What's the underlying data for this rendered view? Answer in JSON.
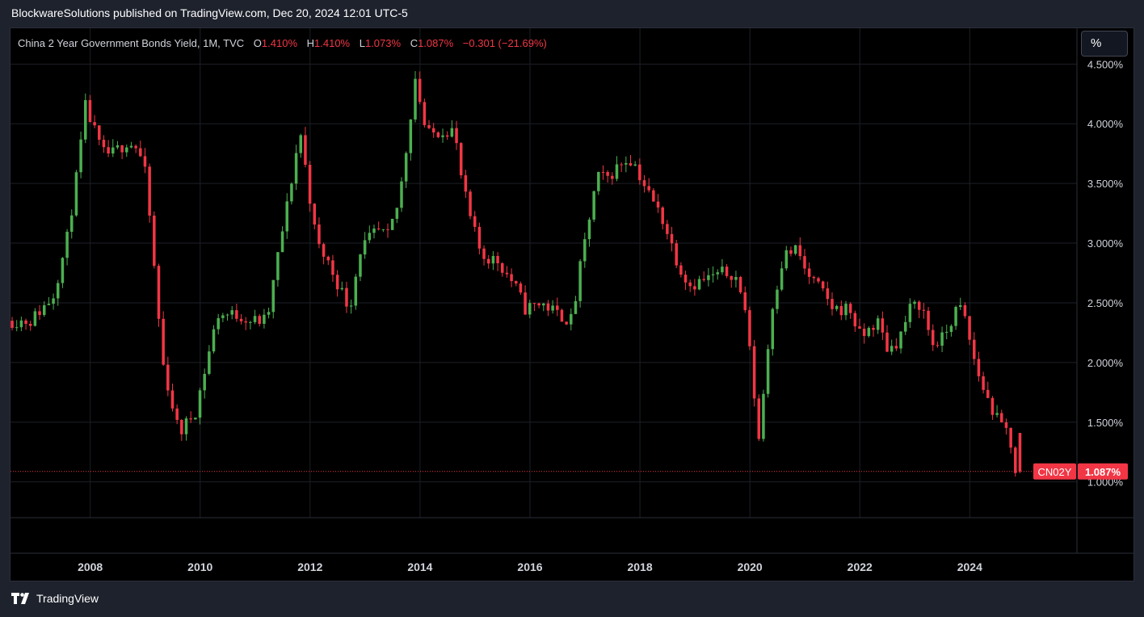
{
  "header": {
    "publisher_line": "BlockwareSolutions published on TradingView.com, Dec 20, 2024 12:01 UTC-5"
  },
  "legend": {
    "symbol": "China 2 Year Government Bonds Yield, 1M, TVC",
    "open_label": "O",
    "open": "1.410%",
    "high_label": "H",
    "high": "1.410%",
    "low_label": "L",
    "low": "1.073%",
    "close_label": "C",
    "close": "1.087%",
    "change": "−0.301 (−21.69%)"
  },
  "toolbar": {
    "unit_button": "%"
  },
  "footer": {
    "brand": "TradingView"
  },
  "colors": {
    "up": "#4caf50",
    "down": "#f23645",
    "background": "#000000",
    "grid": "#1c1f27",
    "axis_text": "#d1d4dc",
    "frame": "#1e222d"
  },
  "chart_data": {
    "type": "candlestick",
    "interval": "1M",
    "ticker": "CN02Y",
    "last_price_label": "1.087%",
    "y_scale": "linear",
    "ylim": [
      0.7,
      4.8
    ],
    "xlim": [
      2006.55,
      2025.95
    ],
    "y_ticks": [
      1.0,
      1.5,
      2.0,
      2.5,
      3.0,
      3.5,
      4.0,
      4.5
    ],
    "y_tick_labels": [
      "1.000%",
      "1.500%",
      "2.000%",
      "2.500%",
      "3.000%",
      "3.500%",
      "4.000%",
      "4.500%"
    ],
    "x_ticks": [
      2008,
      2010,
      2012,
      2014,
      2016,
      2018,
      2020,
      2022,
      2024
    ],
    "x_tick_labels": [
      "2008",
      "2010",
      "2012",
      "2014",
      "2016",
      "2018",
      "2020",
      "2022",
      "2024"
    ],
    "grid": true,
    "close_anchor_dates": [
      2006.58,
      2007.0,
      2007.4,
      2007.65,
      2007.85,
      2008.0,
      2008.3,
      2008.5,
      2008.75,
      2008.95,
      2009.1,
      2009.4,
      2009.7,
      2010.0,
      2010.4,
      2010.8,
      2011.0,
      2011.3,
      2011.5,
      2011.7,
      2011.9,
      2012.2,
      2012.4,
      2012.6,
      2012.8,
      2013.0,
      2013.3,
      2013.5,
      2013.7,
      2013.85,
      2014.0,
      2014.2,
      2014.5,
      2014.7,
      2014.85,
      2015.0,
      2015.2,
      2015.5,
      2015.8,
      2016.0,
      2016.3,
      2016.6,
      2016.85,
      2017.0,
      2017.3,
      2017.5,
      2017.8,
      2017.95,
      2018.2,
      2018.5,
      2018.8,
      2019.0,
      2019.3,
      2019.6,
      2019.8,
      2020.0,
      2020.1,
      2020.25,
      2020.35,
      2020.5,
      2020.7,
      2020.95,
      2021.1,
      2021.3,
      2021.6,
      2021.9,
      2022.1,
      2022.4,
      2022.6,
      2022.8,
      2023.0,
      2023.2,
      2023.4,
      2023.6,
      2023.85,
      2023.95,
      2024.2,
      2024.4,
      2024.6,
      2024.8,
      2024.92
    ],
    "close_anchor_values": [
      2.35,
      2.35,
      2.55,
      3.0,
      3.6,
      4.15,
      3.75,
      3.75,
      3.85,
      3.8,
      3.55,
      2.0,
      1.4,
      1.6,
      2.4,
      2.4,
      2.35,
      2.35,
      2.9,
      3.4,
      3.95,
      3.0,
      2.85,
      2.65,
      2.45,
      2.95,
      3.1,
      3.05,
      3.35,
      3.85,
      4.4,
      3.9,
      3.95,
      3.95,
      3.5,
      3.2,
      2.9,
      2.85,
      2.65,
      2.45,
      2.5,
      2.4,
      2.35,
      2.8,
      3.55,
      3.55,
      3.7,
      3.7,
      3.45,
      3.2,
      2.8,
      2.65,
      2.7,
      2.75,
      2.75,
      2.45,
      2.0,
      1.35,
      1.85,
      2.5,
      2.9,
      2.95,
      2.75,
      2.65,
      2.45,
      2.45,
      2.2,
      2.35,
      2.1,
      2.2,
      2.45,
      2.5,
      2.15,
      2.2,
      2.45,
      2.45,
      1.95,
      1.7,
      1.5,
      1.4,
      1.087
    ],
    "last_candle": {
      "open": 1.41,
      "high": 1.41,
      "low": 1.073,
      "close": 1.087
    }
  }
}
